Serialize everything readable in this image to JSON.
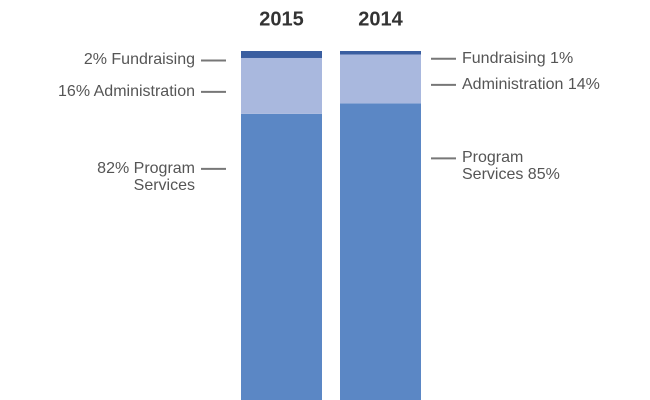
{
  "chart_data": {
    "type": "stacked_bar",
    "categories": [
      "2015",
      "2014"
    ],
    "ylim": [
      0,
      100
    ],
    "series": [
      {
        "color": "#5b87c5",
        "values": [
          82,
          85
        ],
        "value_labels": [
          "82% Program Services",
          "Program Services 85%"
        ]
      },
      {
        "color": "#a9b8de",
        "values": [
          16,
          14
        ],
        "value_labels": [
          "16% Administration",
          "Administration 14%"
        ]
      },
      {
        "color": "#3a5ea0",
        "values": [
          2,
          1
        ],
        "value_labels": [
          "2% Fundraising",
          "Fundraising 1%"
        ]
      }
    ]
  }
}
